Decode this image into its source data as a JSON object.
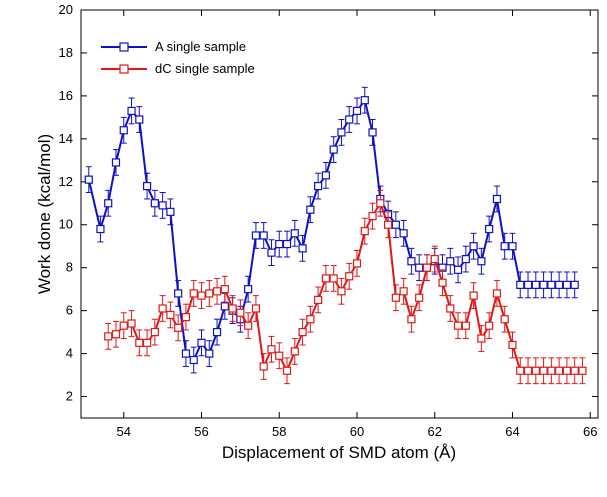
{
  "chart_data": {
    "type": "line",
    "xlabel": "Displacement of SMD atom (Å)",
    "ylabel": "Work done (kcal/mol)",
    "xlim": [
      52.9,
      66.2
    ],
    "ylim": [
      1,
      20
    ],
    "xticks": [
      54,
      56,
      58,
      60,
      62,
      64,
      66
    ],
    "yticks": [
      2,
      4,
      6,
      8,
      10,
      12,
      14,
      16,
      18,
      20
    ],
    "legend_position": "top-left",
    "error_bars": true,
    "series": [
      {
        "name": "A single sample",
        "color": "#1010c8",
        "marker": "open-square",
        "x": [
          53.1,
          53.4,
          53.6,
          53.8,
          54.0,
          54.2,
          54.4,
          54.6,
          54.8,
          55.0,
          55.2,
          55.4,
          55.6,
          55.8,
          56.0,
          56.2,
          56.4,
          56.6,
          56.8,
          57.0,
          57.2,
          57.4,
          57.6,
          57.8,
          58.0,
          58.2,
          58.4,
          58.6,
          58.8,
          59.0,
          59.2,
          59.4,
          59.6,
          59.8,
          60.0,
          60.2,
          60.4,
          60.6,
          60.8,
          61.0,
          61.2,
          61.4,
          61.6,
          61.8,
          62.0,
          62.2,
          62.4,
          62.6,
          62.8,
          63.0,
          63.2,
          63.4,
          63.6,
          63.8,
          64.0,
          64.2,
          64.4,
          64.6,
          64.8,
          65.0,
          65.2,
          65.4,
          65.6
        ],
        "y": [
          12.1,
          9.8,
          11.0,
          12.9,
          14.4,
          15.3,
          14.9,
          11.8,
          11.0,
          10.9,
          10.6,
          6.8,
          4.0,
          3.7,
          4.5,
          4.0,
          5.0,
          6.2,
          6.0,
          5.6,
          7.0,
          9.5,
          9.5,
          8.7,
          9.1,
          9.1,
          9.6,
          8.9,
          10.7,
          11.8,
          12.3,
          13.5,
          14.3,
          14.9,
          15.3,
          15.8,
          14.3,
          11.2,
          10.5,
          10.0,
          9.6,
          8.3,
          8.0,
          8.0,
          8.3,
          8.0,
          8.3,
          7.9,
          8.4,
          9.0,
          8.3,
          9.8,
          11.2,
          9.0,
          9.0,
          7.2,
          7.2,
          7.2,
          7.2,
          7.2,
          7.2,
          7.2,
          7.2
        ],
        "error": 0.6
      },
      {
        "name": "dC single sample",
        "color": "#e01818",
        "marker": "open-square",
        "x": [
          53.6,
          53.8,
          54.0,
          54.2,
          54.4,
          54.6,
          54.8,
          55.0,
          55.2,
          55.4,
          55.6,
          55.8,
          56.0,
          56.2,
          56.4,
          56.6,
          56.8,
          57.0,
          57.2,
          57.4,
          57.6,
          57.8,
          58.0,
          58.2,
          58.4,
          58.6,
          58.8,
          59.0,
          59.2,
          59.4,
          59.6,
          59.8,
          60.0,
          60.2,
          60.4,
          60.6,
          60.8,
          61.0,
          61.2,
          61.4,
          61.6,
          61.8,
          62.0,
          62.2,
          62.4,
          62.6,
          62.8,
          63.0,
          63.2,
          63.4,
          63.6,
          63.8,
          64.0,
          64.2,
          64.4,
          64.6,
          64.8,
          65.0,
          65.2,
          65.4,
          65.6,
          65.8
        ],
        "y": [
          4.8,
          4.9,
          5.3,
          5.4,
          4.5,
          4.5,
          5.0,
          6.1,
          5.8,
          5.2,
          5.7,
          6.8,
          6.7,
          6.8,
          6.9,
          7.0,
          6.1,
          5.9,
          5.3,
          6.1,
          3.4,
          4.2,
          3.9,
          3.2,
          4.1,
          5.0,
          5.6,
          6.5,
          7.5,
          7.5,
          6.9,
          7.6,
          8.2,
          9.7,
          10.4,
          11.0,
          10.0,
          6.6,
          6.9,
          5.6,
          6.6,
          8.0,
          8.4,
          7.3,
          6.1,
          5.3,
          5.3,
          6.7,
          4.7,
          5.3,
          6.8,
          5.6,
          4.4,
          3.2,
          3.2,
          3.2,
          3.2,
          3.2,
          3.2,
          3.2,
          3.2,
          3.2
        ],
        "error": 0.6
      }
    ]
  }
}
